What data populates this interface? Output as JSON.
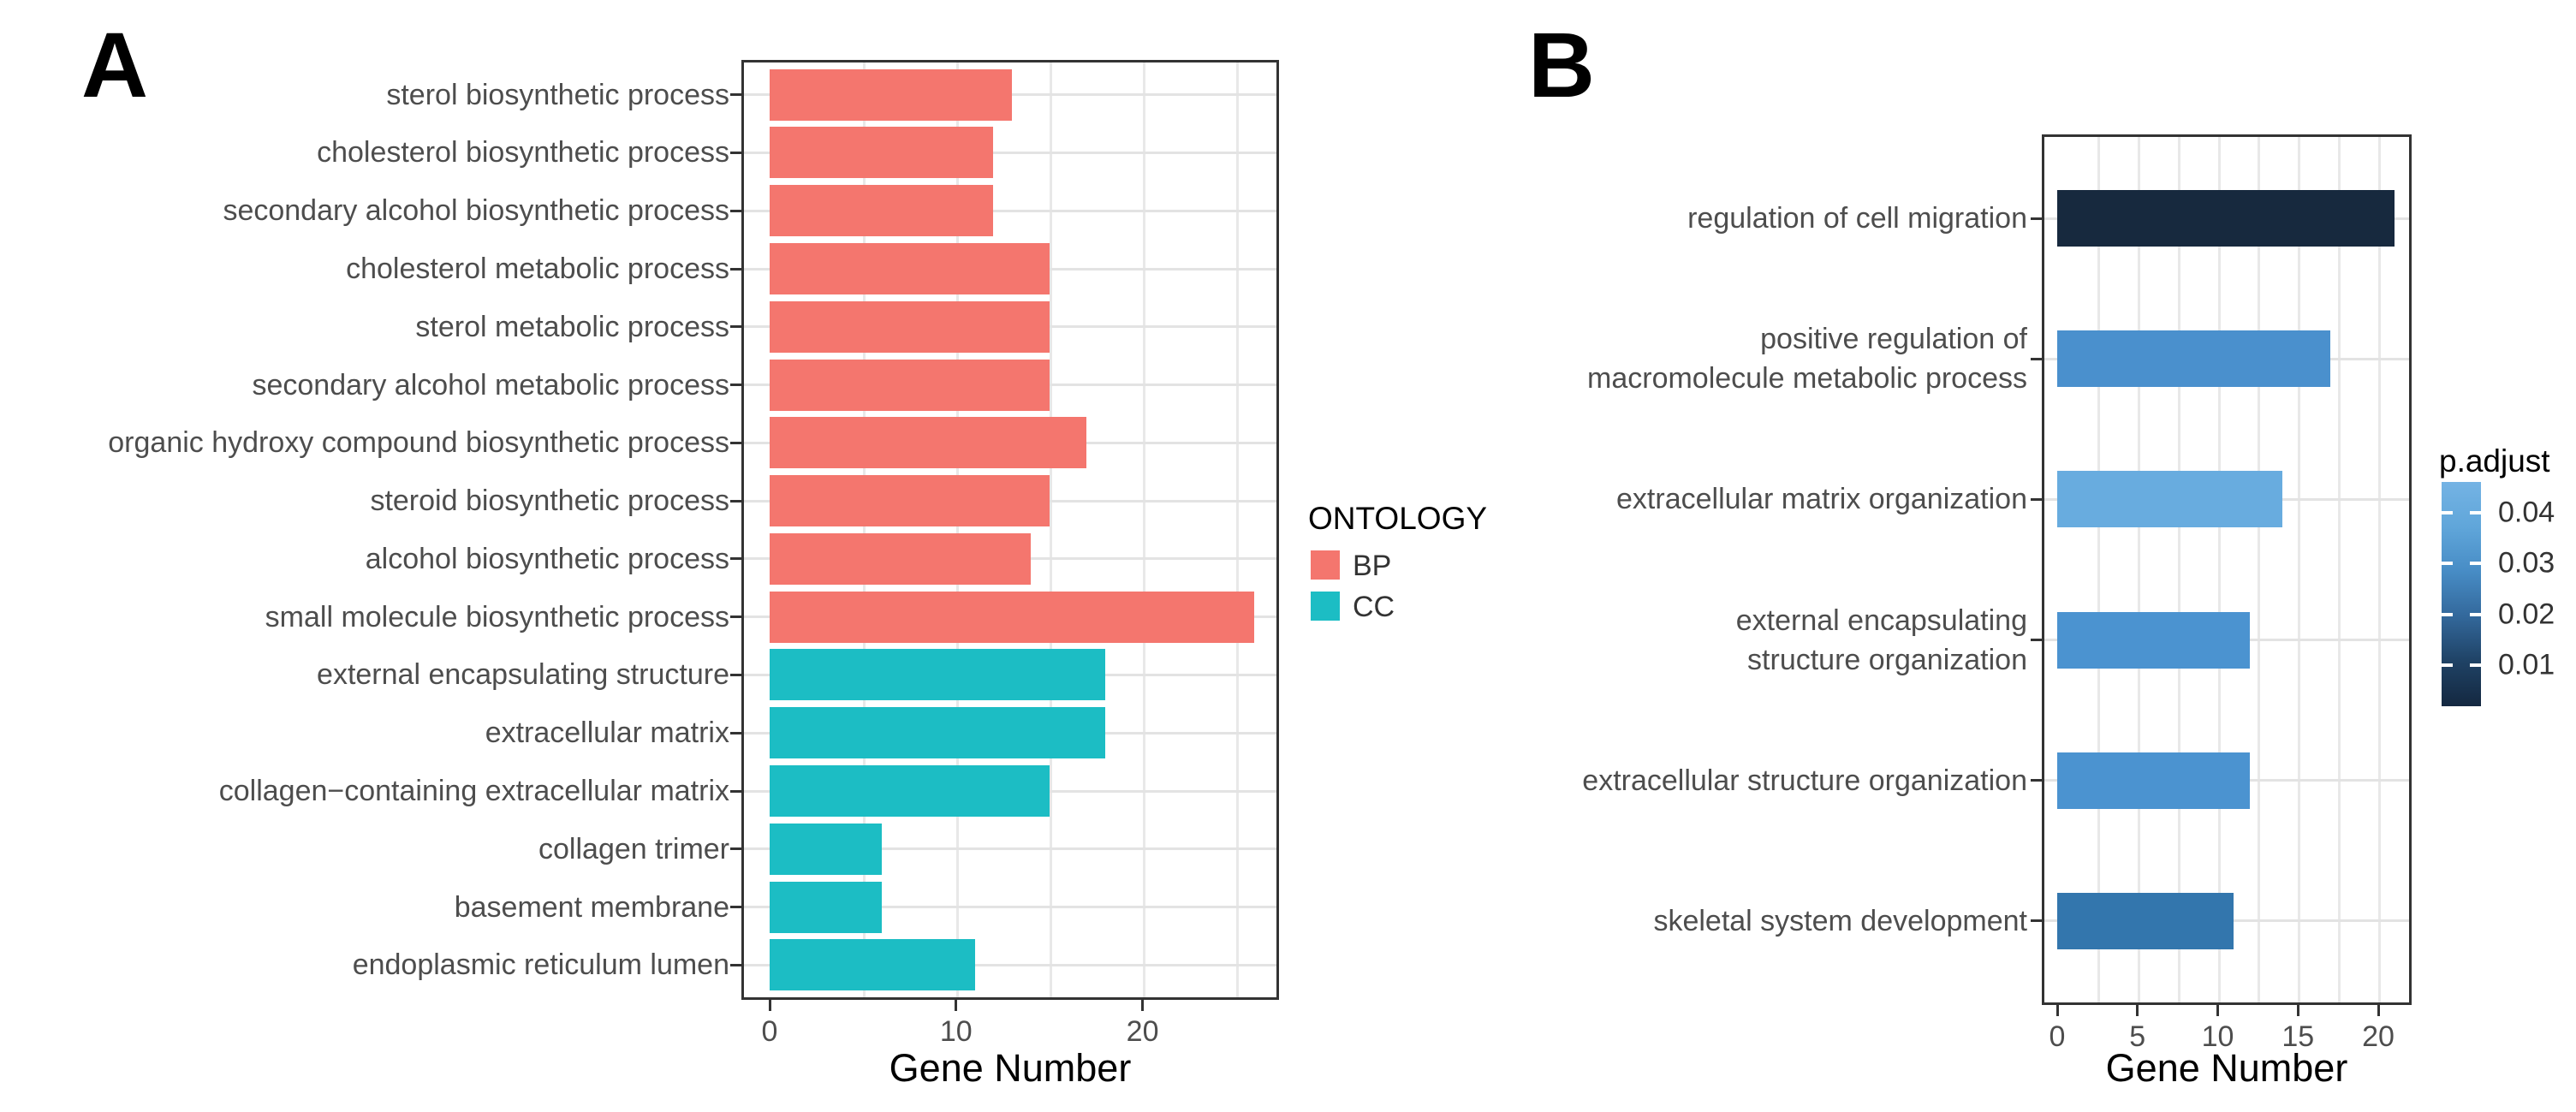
{
  "figure": {
    "panel_a_letter": "A",
    "panel_b_letter": "B"
  },
  "chart_data": [
    {
      "type": "bar",
      "orientation": "horizontal",
      "panel": "A",
      "title": "",
      "xlabel": "Gene Number",
      "x_ticks": [
        "0",
        "10",
        "20"
      ],
      "x_tick_values": [
        0,
        10,
        20
      ],
      "xlim": [
        0,
        27.3
      ],
      "grid": true,
      "legend": {
        "title": "ONTOLOGY",
        "position": "right",
        "items": [
          {
            "label": "BP",
            "color": "#F4766E"
          },
          {
            "label": "CC",
            "color": "#1CBDC4"
          }
        ]
      },
      "categories": [
        "sterol biosynthetic process",
        "cholesterol biosynthetic process",
        "secondary alcohol biosynthetic process",
        "cholesterol metabolic process",
        "sterol metabolic process",
        "secondary alcohol metabolic process",
        "organic hydroxy compound biosynthetic process",
        "steroid biosynthetic process",
        "alcohol biosynthetic process",
        "small molecule biosynthetic process",
        "external encapsulating structure",
        "extracellular matrix",
        "collagen−containing extracellular matrix",
        "collagen trimer",
        "basement membrane",
        "endoplasmic reticulum lumen"
      ],
      "values": [
        13,
        12,
        12,
        15,
        15,
        15,
        17,
        15,
        14,
        26,
        18,
        18,
        15,
        6,
        6,
        11
      ],
      "groups": [
        "BP",
        "BP",
        "BP",
        "BP",
        "BP",
        "BP",
        "BP",
        "BP",
        "BP",
        "BP",
        "CC",
        "CC",
        "CC",
        "CC",
        "CC",
        "CC"
      ]
    },
    {
      "type": "bar",
      "orientation": "horizontal",
      "panel": "B",
      "title": "",
      "xlabel": "Gene Number",
      "x_ticks": [
        "0",
        "5",
        "10",
        "15",
        "20"
      ],
      "x_tick_values": [
        0,
        5,
        10,
        15,
        20
      ],
      "xlim": [
        0,
        22.05
      ],
      "grid": true,
      "colorbar": {
        "title": "p.adjust",
        "tick_labels": [
          "0.04",
          "0.03",
          "0.02",
          "0.01"
        ],
        "gradient_top_color": "#74B3E4",
        "gradient_bottom_color": "#142840",
        "gradient_stops": [
          "#74B3E4",
          "#60A6DA",
          "#478CC5",
          "#33689B",
          "#1F4265",
          "#142840"
        ]
      },
      "categories": [
        "regulation of cell migration",
        "positive regulation of macromolecule metabolic process",
        "extracellular matrix organization",
        "external encapsulating structure organization",
        "extracellular structure organization",
        "skeletal system development"
      ],
      "category_lines": [
        [
          "regulation of cell migration"
        ],
        [
          "positive regulation of",
          "macromolecule metabolic process"
        ],
        [
          "extracellular matrix organization"
        ],
        [
          "external encapsulating",
          "structure organization"
        ],
        [
          "extracellular structure organization"
        ],
        [
          "skeletal system development"
        ]
      ],
      "values": [
        21,
        17,
        14,
        12,
        12,
        11
      ],
      "bar_colors": [
        "#17293E",
        "#4A90CD",
        "#68ACDF",
        "#4B93D0",
        "#4B93D0",
        "#3376AD"
      ]
    }
  ]
}
